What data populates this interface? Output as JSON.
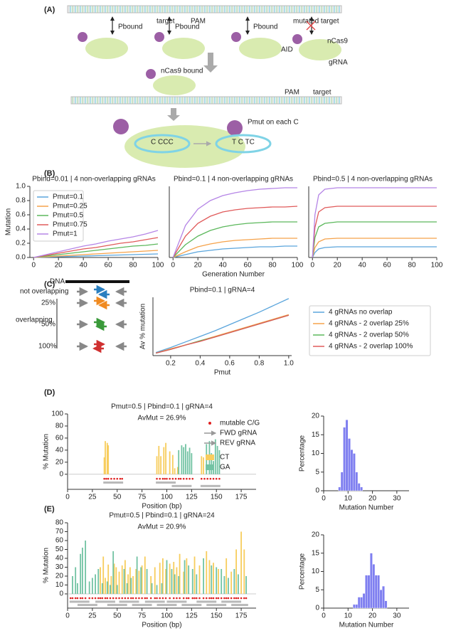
{
  "diagram_a": {
    "label": "(A)",
    "target": "target",
    "pam": "PAM",
    "mutated_target": "mutated target",
    "pbound": [
      "Pbound",
      "Pbound",
      "Pbound"
    ],
    "aid": "AID",
    "ncas9": "nCas9",
    "grna": "gRNA",
    "ncas9_bound": "nCas9 bound",
    "pam_2": "PAM",
    "target_2": "target",
    "pmut": "Pmut on each C",
    "before": "C  CCC",
    "after": "T  C TC"
  },
  "diagram_c": {
    "label": "(C)",
    "dna": "DNA",
    "not_overlapping": "not overlapping",
    "overlapping": "overlapping",
    "levels": [
      "25%",
      "50%",
      "100%"
    ]
  },
  "panel_labels": {
    "b": "(B)",
    "d": "(D)",
    "e": "(E)"
  },
  "chart_data": [
    {
      "type": "line",
      "title": "Pbind=0.01 | 4 non-overlapping gRNAs",
      "y_label": "Mutation",
      "legend": "upper left",
      "x": [
        0,
        10,
        20,
        30,
        40,
        50,
        60,
        70,
        80,
        90,
        100
      ],
      "xlim": [
        -3,
        100
      ],
      "xticks": [
        0,
        20,
        40,
        60,
        80,
        100
      ],
      "ylim": [
        0,
        1
      ],
      "yticks": [
        {
          "value": 0,
          "label": "0.0"
        },
        0.2,
        0.4,
        0.6,
        0.8,
        {
          "value": 1,
          "label": "1.0"
        }
      ],
      "series": [
        {
          "name": "Pmut=0.1",
          "color": "#5aa5dc",
          "values": [
            0,
            0.005,
            0.01,
            0.015,
            0.02,
            0.025,
            0.03,
            0.035,
            0.04,
            0.045,
            0.05
          ]
        },
        {
          "name": "Pmut=0.25",
          "color": "#f5a24a",
          "values": [
            0,
            0.01,
            0.02,
            0.03,
            0.04,
            0.05,
            0.06,
            0.07,
            0.08,
            0.09,
            0.1
          ]
        },
        {
          "name": "Pmut=0.5",
          "color": "#5cb85c",
          "values": [
            0,
            0.02,
            0.04,
            0.06,
            0.08,
            0.1,
            0.12,
            0.14,
            0.16,
            0.17,
            0.19
          ]
        },
        {
          "name": "Pmut=0.75",
          "color": "#e05a5a",
          "values": [
            0,
            0.03,
            0.06,
            0.09,
            0.12,
            0.14,
            0.17,
            0.2,
            0.22,
            0.25,
            0.28
          ]
        },
        {
          "name": "Pmut=1",
          "color": "#b585e6",
          "values": [
            0,
            0.04,
            0.08,
            0.12,
            0.16,
            0.19,
            0.23,
            0.26,
            0.29,
            0.33,
            0.38
          ]
        }
      ]
    },
    {
      "type": "line",
      "title": "Pbind=0.1 | 4 non-overlapping gRNAs",
      "x_label": "Generation Number",
      "x": [
        0,
        10,
        20,
        30,
        40,
        50,
        60,
        70,
        80,
        90,
        100
      ],
      "xlim": [
        -3,
        100
      ],
      "xticks": [
        0,
        20,
        40,
        60,
        80,
        100
      ],
      "ylim": [
        0,
        1
      ],
      "series": [
        {
          "color": "#5aa5dc",
          "values": [
            0,
            0.04,
            0.08,
            0.1,
            0.12,
            0.13,
            0.14,
            0.15,
            0.15,
            0.16,
            0.16
          ]
        },
        {
          "color": "#f5a24a",
          "values": [
            0,
            0.08,
            0.15,
            0.19,
            0.22,
            0.24,
            0.25,
            0.26,
            0.27,
            0.27,
            0.27
          ]
        },
        {
          "color": "#5cb85c",
          "values": [
            0,
            0.18,
            0.3,
            0.38,
            0.43,
            0.46,
            0.48,
            0.49,
            0.5,
            0.5,
            0.5
          ]
        },
        {
          "color": "#e05a5a",
          "values": [
            0,
            0.3,
            0.48,
            0.58,
            0.64,
            0.67,
            0.69,
            0.7,
            0.71,
            0.71,
            0.72
          ]
        },
        {
          "color": "#b585e6",
          "values": [
            0,
            0.45,
            0.68,
            0.8,
            0.87,
            0.91,
            0.94,
            0.96,
            0.97,
            0.98,
            0.98
          ]
        }
      ]
    },
    {
      "type": "line",
      "title": "Pbind=0.5 | 4 non-overlapping gRNAs",
      "x": [
        0,
        2,
        5,
        10,
        20,
        30,
        40,
        50,
        60,
        70,
        80,
        90,
        100
      ],
      "xlim": [
        -3,
        100
      ],
      "xticks": [
        0,
        20,
        40,
        60,
        80,
        100
      ],
      "ylim": [
        0,
        1
      ],
      "series": [
        {
          "color": "#5aa5dc",
          "values": [
            0,
            0.07,
            0.12,
            0.14,
            0.15,
            0.15,
            0.15,
            0.15,
            0.15,
            0.15,
            0.15,
            0.15,
            0.15
          ]
        },
        {
          "color": "#f5a24a",
          "values": [
            0,
            0.14,
            0.22,
            0.26,
            0.27,
            0.27,
            0.27,
            0.27,
            0.27,
            0.27,
            0.27,
            0.27,
            0.27
          ]
        },
        {
          "color": "#5cb85c",
          "values": [
            0,
            0.28,
            0.43,
            0.48,
            0.5,
            0.5,
            0.5,
            0.5,
            0.5,
            0.5,
            0.5,
            0.5,
            0.5
          ]
        },
        {
          "color": "#e05a5a",
          "values": [
            0,
            0.42,
            0.64,
            0.7,
            0.72,
            0.72,
            0.72,
            0.72,
            0.72,
            0.72,
            0.72,
            0.72,
            0.72
          ]
        },
        {
          "color": "#b585e6",
          "values": [
            0,
            0.6,
            0.88,
            0.96,
            0.98,
            0.98,
            0.98,
            0.98,
            0.98,
            0.98,
            0.98,
            0.98,
            0.98
          ]
        }
      ]
    },
    {
      "type": "line",
      "title": "Pbind=0.1 | gRNA=4",
      "x_label": "Pmut",
      "y_label": "Av % mutation",
      "legend": "right",
      "x": [
        0.1,
        0.2,
        0.3,
        0.4,
        0.5,
        0.6,
        0.7,
        0.8,
        0.9,
        1.0
      ],
      "xlim": [
        0.08,
        1.02
      ],
      "xticks": [
        0.2,
        0.4,
        0.6,
        0.8,
        {
          "value": 1,
          "label": "1.0"
        }
      ],
      "ylim": [
        0.08,
        1.02
      ],
      "series": [
        {
          "name": "4 gRNAs no overlap",
          "color": "#5aa5dc",
          "values": [
            0.13,
            0.21,
            0.3,
            0.39,
            0.48,
            0.58,
            0.68,
            0.78,
            0.89,
            1.0
          ]
        },
        {
          "name": "4 gRNAs - 2 overlap 25%",
          "color": "#f5a24a",
          "values": [
            0.12,
            0.19,
            0.25,
            0.32,
            0.39,
            0.46,
            0.53,
            0.6,
            0.67,
            0.74
          ]
        },
        {
          "name": "4 gRNAs - 2 overlap 50%",
          "color": "#5cb85c",
          "values": [
            0.12,
            0.18,
            0.25,
            0.32,
            0.38,
            0.45,
            0.52,
            0.59,
            0.66,
            0.73
          ]
        },
        {
          "name": "4 gRNAs - 2 overlap 100%",
          "color": "#e05a5a",
          "values": [
            0.12,
            0.18,
            0.25,
            0.31,
            0.38,
            0.45,
            0.52,
            0.59,
            0.66,
            0.73
          ]
        }
      ]
    },
    {
      "type": "bar",
      "title": "Pmut=0.5 | Pbind=0.1 | gRNA=4",
      "subtitle": "AvMut = 26.9%",
      "x_label": "Position (bp)",
      "y_label": "% Mutation",
      "legend": "upper right",
      "xlim": [
        0,
        190
      ],
      "xticks": [
        0,
        25,
        50,
        75,
        100,
        125,
        150,
        175
      ],
      "ylim": [
        -25,
        100
      ],
      "yticks": [
        0,
        20,
        40,
        60,
        80,
        100
      ],
      "mutable": {
        "name": "mutable C/G",
        "color": "#e02020",
        "positions": [
          37,
          39,
          41,
          44,
          47,
          50,
          53,
          55,
          90,
          93,
          96,
          98,
          100,
          103,
          106,
          109,
          112,
          114,
          117,
          120,
          123,
          126,
          135,
          138,
          141,
          144,
          147,
          150,
          153
        ]
      },
      "fwd_gRNA": {
        "name": "FWD gRNA",
        "ranges": [
          [
            36,
            56
          ],
          [
            89,
            109
          ]
        ]
      },
      "rev_gRNA": {
        "name": "REV gRNA",
        "ranges": [
          [
            105,
            125
          ],
          [
            134,
            154
          ]
        ]
      },
      "series": [
        {
          "name": "CT",
          "color": "#f7cd5e",
          "x": [
            37,
            38,
            40,
            41,
            90,
            92,
            94,
            97,
            99,
            103,
            106,
            108,
            111,
            135,
            137
          ],
          "values": [
            28,
            55,
            52,
            48,
            30,
            47,
            30,
            45,
            52,
            38,
            32,
            10,
            12,
            30,
            28
          ]
        },
        {
          "name": "GA",
          "color": "#72c3a3",
          "x": [
            112,
            115,
            117,
            119,
            121,
            123,
            125,
            140,
            143,
            145,
            147,
            149,
            151,
            153
          ],
          "values": [
            40,
            48,
            45,
            50,
            38,
            44,
            35,
            50,
            55,
            35,
            22,
            58,
            47,
            40
          ]
        }
      ]
    },
    {
      "type": "histogram",
      "x_label": "Mutation Number",
      "y_label": "Percentage",
      "color": "#7f7ff0",
      "bins": [
        6,
        7,
        8,
        9,
        10,
        11,
        12,
        13,
        14,
        15,
        16
      ],
      "values": [
        1,
        5,
        17,
        19,
        14,
        11,
        10,
        5,
        2,
        1
      ],
      "xlim": [
        0,
        35
      ],
      "xticks": [
        0,
        10,
        20,
        30
      ],
      "ylim": [
        0,
        20
      ],
      "yticks": [
        0,
        5,
        10,
        15,
        20
      ]
    },
    {
      "type": "bar",
      "title": "Pmut=0.5 | Pbind=0.1 | gRNA=24",
      "subtitle": "AvMut = 20.9%",
      "x_label": "Position (bp)",
      "y_label": "% Mutation",
      "xlim": [
        0,
        190
      ],
      "xticks": [
        0,
        25,
        50,
        75,
        100,
        125,
        150,
        175
      ],
      "ylim": [
        -16,
        80
      ],
      "yticks": [
        0,
        10,
        20,
        30,
        40,
        50,
        60,
        70,
        80
      ],
      "mutable": {
        "color": "#e02020",
        "positions": [
          3,
          5,
          8,
          10,
          13,
          15,
          18,
          22,
          25,
          28,
          31,
          33,
          35,
          38,
          40,
          43,
          46,
          49,
          52,
          55,
          58,
          61,
          64,
          66,
          69,
          72,
          75,
          78,
          80,
          84,
          88,
          90,
          93,
          96,
          99,
          103,
          107,
          110,
          113,
          117,
          120,
          122,
          126,
          128,
          130,
          133,
          137,
          140,
          143,
          145,
          147,
          150,
          152,
          155,
          158,
          160,
          162,
          165,
          168,
          170,
          172,
          175,
          178,
          180
        ]
      },
      "fwd_gRNA": {
        "ranges": [
          [
            2,
            22
          ],
          [
            28,
            48
          ],
          [
            52,
            72
          ],
          [
            78,
            98
          ],
          [
            100,
            120
          ],
          [
            130,
            150
          ],
          [
            155,
            175
          ]
        ]
      },
      "rev_gRNA": {
        "ranges": [
          [
            10,
            30
          ],
          [
            40,
            60
          ],
          [
            65,
            85
          ],
          [
            90,
            110
          ],
          [
            115,
            135
          ],
          [
            140,
            160
          ],
          [
            165,
            182
          ]
        ]
      },
      "series": [
        {
          "color": "#f7cd5e",
          "x": [
            33,
            36,
            38,
            41,
            44,
            47,
            49,
            52,
            55,
            58,
            61,
            63,
            66,
            69,
            72,
            75,
            78,
            84,
            88,
            93,
            96,
            99,
            103,
            107,
            110,
            113,
            117,
            120,
            128,
            133,
            140,
            143,
            147,
            152,
            160,
            165,
            170,
            175,
            178
          ],
          "values": [
            30,
            42,
            18,
            33,
            20,
            34,
            30,
            25,
            32,
            38,
            22,
            30,
            20,
            28,
            26,
            32,
            42,
            20,
            30,
            35,
            40,
            28,
            34,
            36,
            30,
            45,
            25,
            40,
            42,
            32,
            48,
            38,
            35,
            28,
            40,
            25,
            50,
            70,
            50
          ]
        },
        {
          "color": "#72c3a3",
          "x": [
            5,
            8,
            10,
            13,
            15,
            18,
            22,
            25,
            28,
            31,
            35,
            40,
            43,
            46,
            50,
            57,
            60,
            64,
            70,
            74,
            80,
            85,
            90,
            95,
            100,
            105,
            108,
            112,
            118,
            122,
            126,
            130,
            137,
            145,
            150,
            155,
            158,
            162,
            168,
            172,
            180
          ],
          "values": [
            20,
            30,
            12,
            45,
            52,
            60,
            14,
            18,
            22,
            28,
            12,
            14,
            10,
            48,
            10,
            28,
            12,
            18,
            42,
            30,
            28,
            12,
            10,
            12,
            38,
            28,
            22,
            20,
            38,
            32,
            28,
            22,
            40,
            32,
            30,
            28,
            20,
            18,
            28,
            22,
            20
          ]
        }
      ]
    },
    {
      "type": "histogram",
      "x_label": "Mutation Number",
      "y_label": "Percentage",
      "color": "#7f7ff0",
      "bins": [
        12,
        13,
        14,
        15,
        16,
        17,
        18,
        19,
        20,
        21,
        22,
        23,
        24,
        25,
        26
      ],
      "values": [
        1,
        1,
        3,
        3,
        4,
        9,
        9,
        15,
        12,
        9,
        9,
        5,
        6,
        2
      ],
      "xlim": [
        0,
        35
      ],
      "xticks": [
        0,
        10,
        20,
        30
      ],
      "ylim": [
        0,
        20
      ],
      "yticks": [
        0,
        5,
        10,
        15,
        20
      ]
    }
  ]
}
